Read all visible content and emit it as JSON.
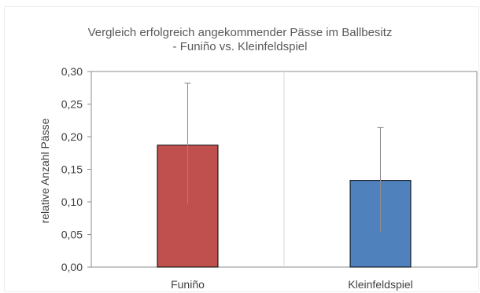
{
  "chart_data": {
    "type": "bar",
    "title": "Vergleich erfolgreich angekommender Pässe im Ballbesitz",
    "subtitle": "- Funiño vs. Kleinfeldspiel",
    "xlabel": "",
    "ylabel": "relative Anzahl Pässe",
    "categories": [
      "Funiño",
      "Kleinfeldspiel"
    ],
    "values": [
      0.187,
      0.133
    ],
    "error_upper": [
      0.095,
      0.081
    ],
    "error_lower": [
      0.09,
      0.08
    ],
    "ylim": [
      0,
      0.3
    ],
    "yticks": [
      "0,00",
      "0,05",
      "0,10",
      "0,15",
      "0,20",
      "0,25",
      "0,30"
    ],
    "colors": [
      "#c0504d",
      "#4f81bd"
    ],
    "bar_stroke": "#000000",
    "grid": true,
    "legend": "none"
  }
}
